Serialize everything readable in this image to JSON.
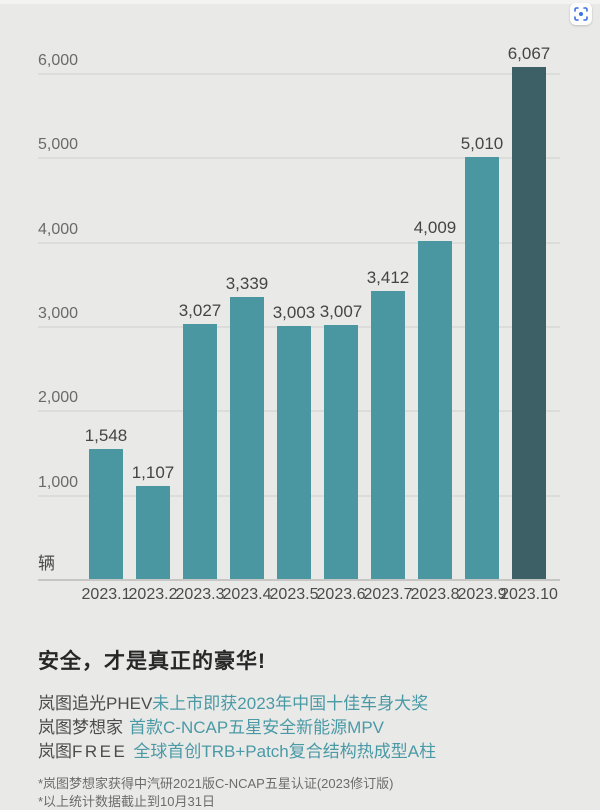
{
  "page": {
    "background": "#e9e9e8"
  },
  "toolbar": {
    "scan_icon_color": "#3a70e2"
  },
  "chart_data": {
    "type": "bar",
    "title": "",
    "unit_label": "辆",
    "categories": [
      "2023.1",
      "2023.2",
      "2023.3",
      "2023.4",
      "2023.5",
      "2023.6",
      "2023.7",
      "2023.8",
      "2023.9",
      "2023.10"
    ],
    "values": [
      1548,
      1107,
      3027,
      3339,
      3003,
      3007,
      3412,
      4009,
      5010,
      6067
    ],
    "value_labels": [
      "1,548",
      "1,107",
      "3,027",
      "3,339",
      "3,003",
      "3,007",
      "3,412",
      "4,009",
      "5,010",
      "6,067"
    ],
    "yticks": [
      1000,
      2000,
      3000,
      4000,
      5000,
      6000
    ],
    "ytick_labels": [
      "1,000",
      "2,000",
      "3,000",
      "4,000",
      "5,000",
      "6,000"
    ],
    "ylim": [
      0,
      6400
    ],
    "grid": true,
    "legend": "none",
    "bar_color": "#4a96a1",
    "highlight_bar_color": "#3d6067",
    "highlight_index": 9
  },
  "footer": {
    "headline": "安全，才是真正的豪华!",
    "lines": [
      {
        "brand": "岚图追光PHEV",
        "logo": "",
        "highlight": "未上市即获2023年中国十佳车身大奖"
      },
      {
        "brand": "岚图梦想家",
        "logo": "",
        "highlight": "首款C-NCAP五星安全新能源MPV"
      },
      {
        "brand": "岚图",
        "logo": "FREE",
        "highlight": "全球首创TRB+Patch复合结构热成型A柱"
      }
    ],
    "notes": [
      "*岚图梦想家获得中汽研2021版C-NCAP五星认证(2023修订版)",
      "*以上统计数据截止到10月31日"
    ]
  }
}
